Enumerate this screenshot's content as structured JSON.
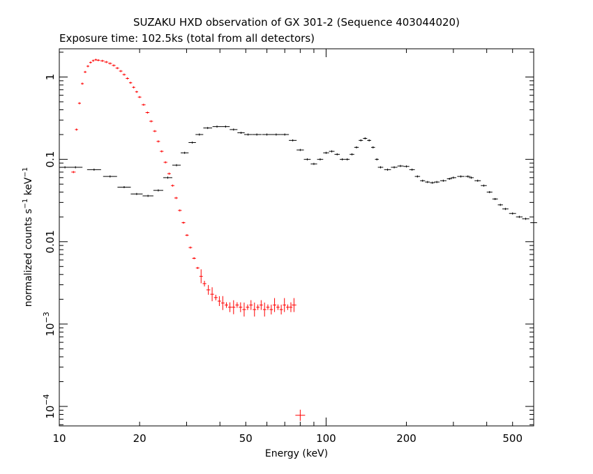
{
  "chart_data": {
    "type": "scatter",
    "title": "SUZAKU HXD observation of GX 301-2 (Sequence 403044020)",
    "subtitle": "Exposure time: 102.5ks (total from all detectors)",
    "xlabel": "Energy (keV)",
    "ylabel": "normalized counts s",
    "ylabel_sup1": "−1",
    "ylabel_mid": " keV",
    "ylabel_sup2": "−1",
    "xscale": "log",
    "yscale": "log",
    "xlim": [
      10,
      600
    ],
    "ylim": [
      5.8e-05,
      2.2
    ],
    "grid": false,
    "x_ticks": [
      {
        "value": 10,
        "label": "10"
      },
      {
        "value": 20,
        "label": "20"
      },
      {
        "value": 50,
        "label": "50"
      },
      {
        "value": 100,
        "label": "100"
      },
      {
        "value": 200,
        "label": "200"
      },
      {
        "value": 500,
        "label": "500"
      }
    ],
    "y_ticks": [
      {
        "value": 1,
        "label": "1"
      },
      {
        "value": 0.1,
        "label": "0.1"
      },
      {
        "value": 0.01,
        "label": "0.01"
      },
      {
        "value": 0.001,
        "label": "10",
        "exp": "−3"
      },
      {
        "value": 0.0001,
        "label": "10",
        "exp": "−4"
      }
    ],
    "series": [
      {
        "color": "#ff0000",
        "x": [
          11.3,
          11.6,
          11.9,
          12.2,
          12.5,
          12.8,
          13.1,
          13.4,
          13.7,
          14.0,
          14.5,
          15.0,
          15.5,
          16.0,
          16.5,
          17.0,
          17.5,
          18.0,
          18.5,
          19.0,
          19.5,
          20.0,
          20.7,
          21.4,
          22.1,
          22.8,
          23.5,
          24.2,
          25.0,
          25.8,
          26.6,
          27.4,
          28.3,
          29.2,
          30.1,
          31.0,
          32.0,
          33.0,
          34.0,
          35.0,
          36.2,
          37.4,
          38.6,
          39.8,
          41.0,
          42.3,
          43.6,
          45.0,
          46.4,
          47.8,
          49.3,
          50.8,
          52.3,
          53.9,
          55.5,
          57.1,
          58.8,
          60.5,
          62.3,
          64.1,
          66.0,
          67.9,
          69.8,
          71.8,
          73.8,
          75.8,
          80.0
        ],
        "y": [
          0.07,
          0.23,
          0.48,
          0.83,
          1.15,
          1.35,
          1.5,
          1.58,
          1.62,
          1.6,
          1.57,
          1.52,
          1.46,
          1.38,
          1.28,
          1.18,
          1.07,
          0.96,
          0.85,
          0.75,
          0.66,
          0.57,
          0.46,
          0.37,
          0.29,
          0.22,
          0.165,
          0.125,
          0.092,
          0.067,
          0.048,
          0.034,
          0.024,
          0.017,
          0.012,
          0.0085,
          0.0063,
          0.0048,
          0.0038,
          0.0031,
          0.0026,
          0.0023,
          0.0021,
          0.0019,
          0.0018,
          0.0017,
          0.0016,
          0.0016,
          0.0017,
          0.0016,
          0.0015,
          0.0016,
          0.0017,
          0.0015,
          0.0016,
          0.0017,
          0.0015,
          0.0016,
          0.0015,
          0.0017,
          0.0016,
          0.0015,
          0.0017,
          0.0016,
          0.0016,
          0.0017,
          7.8e-05
        ]
      },
      {
        "color": "#000000",
        "x": [
          10.5,
          11.5,
          13.5,
          15.5,
          17.5,
          19.5,
          21.5,
          23.5,
          25.5,
          27.5,
          29.5,
          31.5,
          33.5,
          36,
          39,
          42,
          45,
          48,
          51,
          55,
          60,
          65,
          70,
          75,
          80,
          85,
          90,
          95,
          100,
          105,
          110,
          115,
          120,
          125,
          130,
          135,
          140,
          145,
          150,
          155,
          160,
          170,
          180,
          190,
          200,
          210,
          220,
          230,
          240,
          250,
          260,
          275,
          290,
          300,
          320,
          340,
          350,
          370,
          390,
          410,
          430,
          450,
          470,
          500,
          530,
          560,
          600
        ],
        "y": [
          0.08,
          0.08,
          0.075,
          0.062,
          0.046,
          0.038,
          0.036,
          0.042,
          0.06,
          0.085,
          0.12,
          0.16,
          0.2,
          0.24,
          0.25,
          0.25,
          0.23,
          0.21,
          0.2,
          0.2,
          0.2,
          0.2,
          0.2,
          0.17,
          0.13,
          0.1,
          0.088,
          0.1,
          0.12,
          0.125,
          0.115,
          0.1,
          0.1,
          0.115,
          0.14,
          0.17,
          0.18,
          0.17,
          0.14,
          0.1,
          0.08,
          0.075,
          0.08,
          0.083,
          0.082,
          0.075,
          0.062,
          0.055,
          0.053,
          0.052,
          0.053,
          0.055,
          0.058,
          0.06,
          0.062,
          0.062,
          0.06,
          0.055,
          0.048,
          0.04,
          0.033,
          0.028,
          0.025,
          0.022,
          0.02,
          0.019,
          0.017
        ]
      }
    ]
  }
}
